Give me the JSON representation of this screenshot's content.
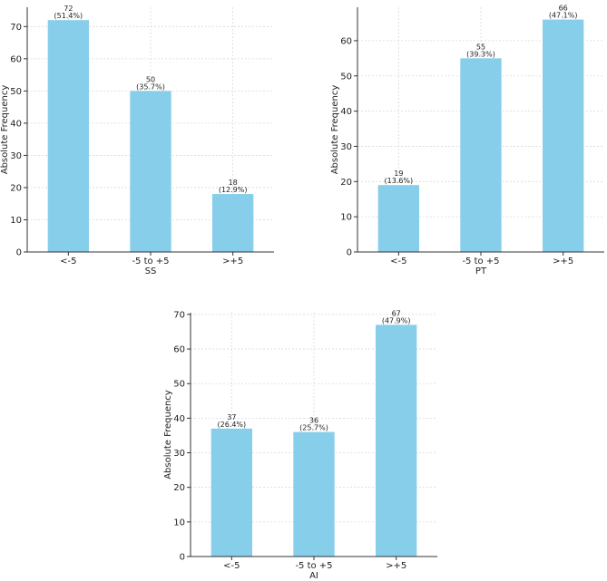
{
  "colors": {
    "bar": "#87CEEB",
    "grid": "#d9d9d9",
    "axis": "#333333",
    "text": "#222222"
  },
  "chart_data": [
    {
      "type": "bar",
      "title": "",
      "xlabel": "SS",
      "ylabel": "Absolute Frequency",
      "categories": [
        "<-5",
        "-5 to +5",
        ">+5"
      ],
      "values": [
        72,
        50,
        18
      ],
      "bar_labels": [
        [
          "72",
          "(51.4%)"
        ],
        [
          "50",
          "(35.7%)"
        ],
        [
          "18",
          "(12.9%)"
        ]
      ],
      "ylim": [
        0,
        76
      ],
      "yticks": [
        0,
        10,
        20,
        30,
        40,
        50,
        60,
        70
      ],
      "grid": true
    },
    {
      "type": "bar",
      "title": "",
      "xlabel": "PT",
      "ylabel": "Absolute Frequency",
      "categories": [
        "<-5",
        "-5 to +5",
        ">+5"
      ],
      "values": [
        19,
        55,
        66
      ],
      "bar_labels": [
        [
          "19",
          "(13.6%)"
        ],
        [
          "55",
          "(39.3%)"
        ],
        [
          "66",
          "(47.1%)"
        ]
      ],
      "ylim": [
        0,
        69.5
      ],
      "yticks": [
        0,
        10,
        20,
        30,
        40,
        50,
        60
      ],
      "grid": true
    },
    {
      "type": "bar",
      "title": "",
      "xlabel": "AI",
      "ylabel": "Absolute Frequency",
      "categories": [
        "<-5",
        "-5 to +5",
        ">+5"
      ],
      "values": [
        37,
        36,
        67
      ],
      "bar_labels": [
        [
          "37",
          "(26.4%)"
        ],
        [
          "36",
          "(25.7%)"
        ],
        [
          "67",
          "(47.9%)"
        ]
      ],
      "ylim": [
        0,
        70.5
      ],
      "yticks": [
        0,
        10,
        20,
        30,
        40,
        50,
        60,
        70
      ],
      "grid": true
    }
  ]
}
